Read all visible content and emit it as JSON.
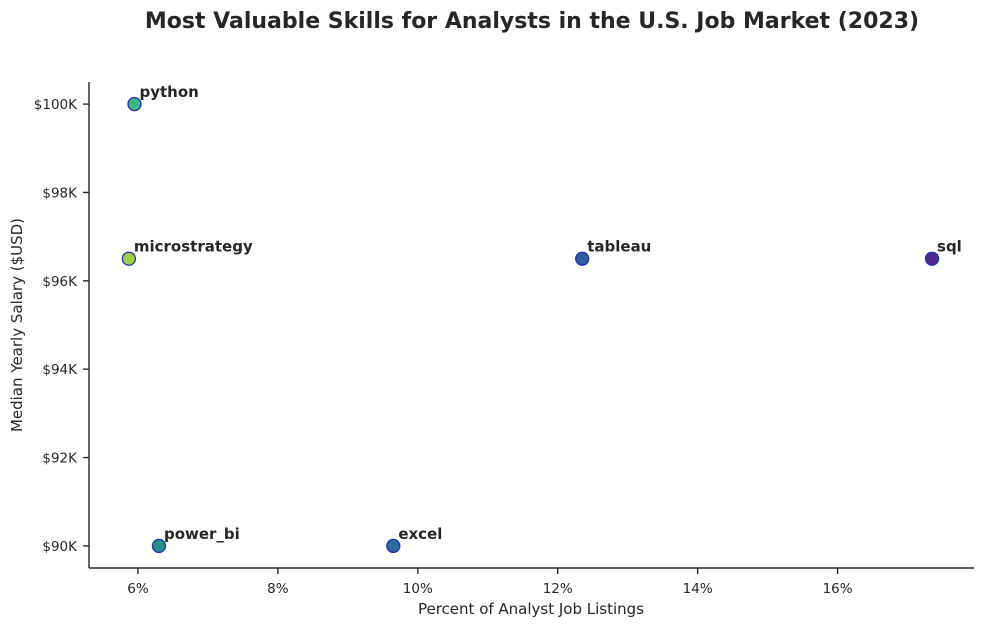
{
  "chart_data": {
    "type": "scatter",
    "title": "Most Valuable Skills for Analysts in the U.S. Job Market (2023)",
    "xlabel": "Percent of Analyst Job Listings",
    "ylabel": "Median Yearly Salary ($USD)",
    "xlim": [
      5.3,
      17.95
    ],
    "ylim": [
      89500,
      100500
    ],
    "xticks": [
      6,
      8,
      10,
      12,
      14,
      16
    ],
    "xtick_labels": [
      "6%",
      "8%",
      "10%",
      "12%",
      "14%",
      "16%"
    ],
    "yticks": [
      90000,
      92000,
      94000,
      96000,
      98000,
      100000
    ],
    "ytick_labels": [
      "$90K",
      "$92K",
      "$94K",
      "$96K",
      "$98K",
      "$100K"
    ],
    "grid": false,
    "points": [
      {
        "label": "python",
        "x": 5.95,
        "y": 100000,
        "color": "#3cb97a"
      },
      {
        "label": "microstrategy",
        "x": 5.87,
        "y": 96500,
        "color": "#9fd140"
      },
      {
        "label": "tableau",
        "x": 12.35,
        "y": 96500,
        "color": "#2e5c9c"
      },
      {
        "label": "sql",
        "x": 17.35,
        "y": 96500,
        "color": "#4a2a8f"
      },
      {
        "label": "power_bi",
        "x": 6.3,
        "y": 90000,
        "color": "#23938a"
      },
      {
        "label": "excel",
        "x": 9.65,
        "y": 90000,
        "color": "#2a6b9a"
      }
    ],
    "marker_edge_color": "#1f2fbf"
  }
}
